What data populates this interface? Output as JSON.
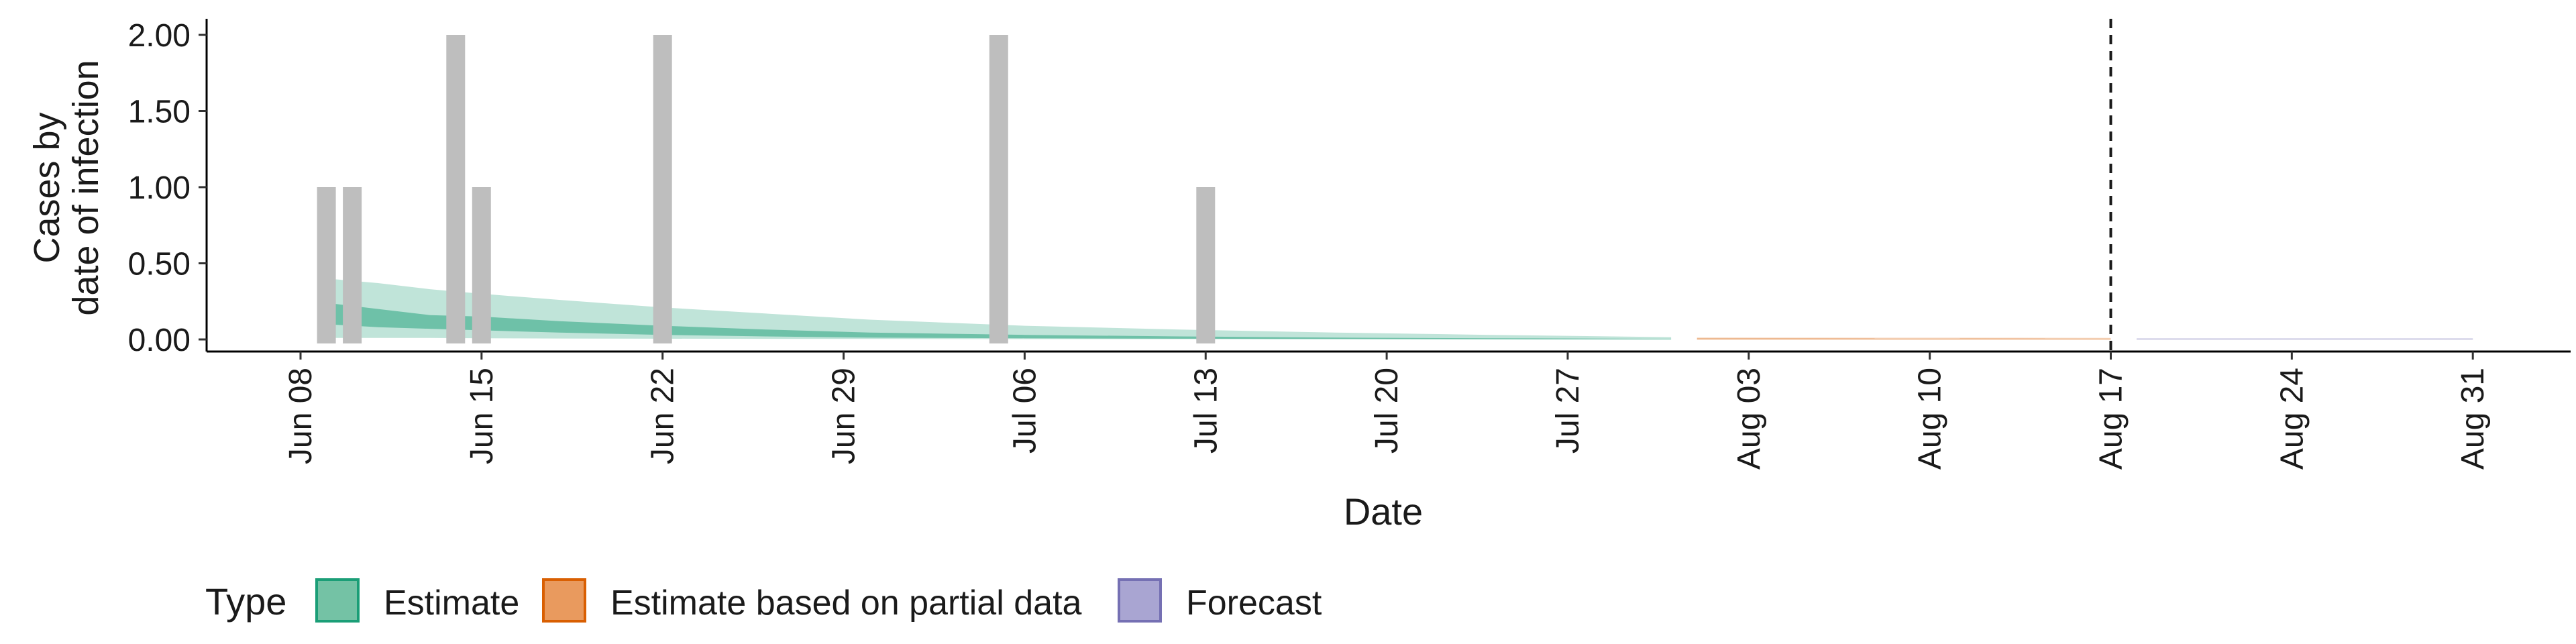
{
  "chart_data": {
    "type": "bar",
    "ylabel_lines": [
      "Cases by",
      "date of infection"
    ],
    "xlabel": "Date",
    "ylim": [
      0,
      2.0
    ],
    "y_ticks": [
      {
        "value": 0,
        "label": "0.00"
      },
      {
        "value": 0.5,
        "label": "0.50"
      },
      {
        "value": 1.0,
        "label": "1.00"
      },
      {
        "value": 1.5,
        "label": "1.50"
      },
      {
        "value": 2.0,
        "label": "2.00"
      }
    ],
    "x_range": [
      "2025-06-03",
      "2025-09-04"
    ],
    "x_ticks": [
      {
        "date": "2025-06-08",
        "label": "Jun 08"
      },
      {
        "date": "2025-06-15",
        "label": "Jun 15"
      },
      {
        "date": "2025-06-22",
        "label": "Jun 22"
      },
      {
        "date": "2025-06-29",
        "label": "Jun 29"
      },
      {
        "date": "2025-07-06",
        "label": "Jul 06"
      },
      {
        "date": "2025-07-13",
        "label": "Jul 13"
      },
      {
        "date": "2025-07-20",
        "label": "Jul 20"
      },
      {
        "date": "2025-07-27",
        "label": "Jul 27"
      },
      {
        "date": "2025-08-03",
        "label": "Aug 03"
      },
      {
        "date": "2025-08-10",
        "label": "Aug 10"
      },
      {
        "date": "2025-08-17",
        "label": "Aug 17"
      },
      {
        "date": "2025-08-24",
        "label": "Aug 24"
      },
      {
        "date": "2025-08-31",
        "label": "Aug 31"
      }
    ],
    "observed_cases": [
      {
        "date": "2025-06-09",
        "value": 1
      },
      {
        "date": "2025-06-10",
        "value": 1
      },
      {
        "date": "2025-06-14",
        "value": 2
      },
      {
        "date": "2025-06-15",
        "value": 1
      },
      {
        "date": "2025-06-22",
        "value": 2
      },
      {
        "date": "2025-07-05",
        "value": 2
      },
      {
        "date": "2025-07-13",
        "value": 1
      }
    ],
    "vertical_line": {
      "date": "2025-08-17",
      "style": "dashed"
    },
    "series": [
      {
        "name": "Estimate",
        "color": "#1b9e77",
        "x": [
          "2025-06-09",
          "2025-06-11",
          "2025-06-13",
          "2025-06-15",
          "2025-06-18",
          "2025-06-22",
          "2025-06-26",
          "2025-06-30",
          "2025-07-06",
          "2025-07-12",
          "2025-07-18",
          "2025-07-24",
          "2025-07-31"
        ],
        "outer_upper": [
          0.4,
          0.37,
          0.33,
          0.3,
          0.26,
          0.21,
          0.17,
          0.13,
          0.09,
          0.065,
          0.045,
          0.03,
          0.015
        ],
        "outer_lower": [
          0.01,
          0.01,
          0.01,
          0.008,
          0.006,
          0.005,
          0.004,
          0.003,
          0.002,
          0.002,
          0.001,
          0.001,
          0.0
        ],
        "inner_upper": [
          0.24,
          0.2,
          0.16,
          0.15,
          0.12,
          0.09,
          0.065,
          0.045,
          0.03,
          0.02,
          0.012,
          0.008,
          0.004
        ],
        "inner_lower": [
          0.1,
          0.08,
          0.07,
          0.06,
          0.045,
          0.03,
          0.02,
          0.012,
          0.008,
          0.005,
          0.003,
          0.001,
          0.0
        ]
      },
      {
        "name": "Estimate based on partial data",
        "color": "#d95f02",
        "x": [
          "2025-08-01",
          "2025-08-17"
        ],
        "outer_upper": [
          0.012,
          0.01
        ],
        "outer_lower": [
          0.0,
          0.0
        ],
        "inner_upper": [
          0.006,
          0.005
        ],
        "inner_lower": [
          0.0,
          0.0
        ]
      },
      {
        "name": "Forecast",
        "color": "#7570b3",
        "x": [
          "2025-08-18",
          "2025-08-31"
        ],
        "outer_upper": [
          0.008,
          0.008
        ],
        "outer_lower": [
          0.0,
          0.0
        ],
        "inner_upper": [
          0.004,
          0.004
        ],
        "inner_lower": [
          0.0,
          0.0
        ]
      }
    ],
    "legend": {
      "title": "Type",
      "position": "bottom",
      "items": [
        {
          "label": "Estimate",
          "fill": "#74c2a5",
          "stroke": "#1b9e77"
        },
        {
          "label": "Estimate based on partial data",
          "fill": "#e99a5e",
          "stroke": "#d95f02"
        },
        {
          "label": "Forecast",
          "fill": "#a9a5d2",
          "stroke": "#7570b3"
        }
      ]
    },
    "colors": {
      "observed_bar": "#bebebe",
      "vline": "#1a1a1a"
    }
  }
}
